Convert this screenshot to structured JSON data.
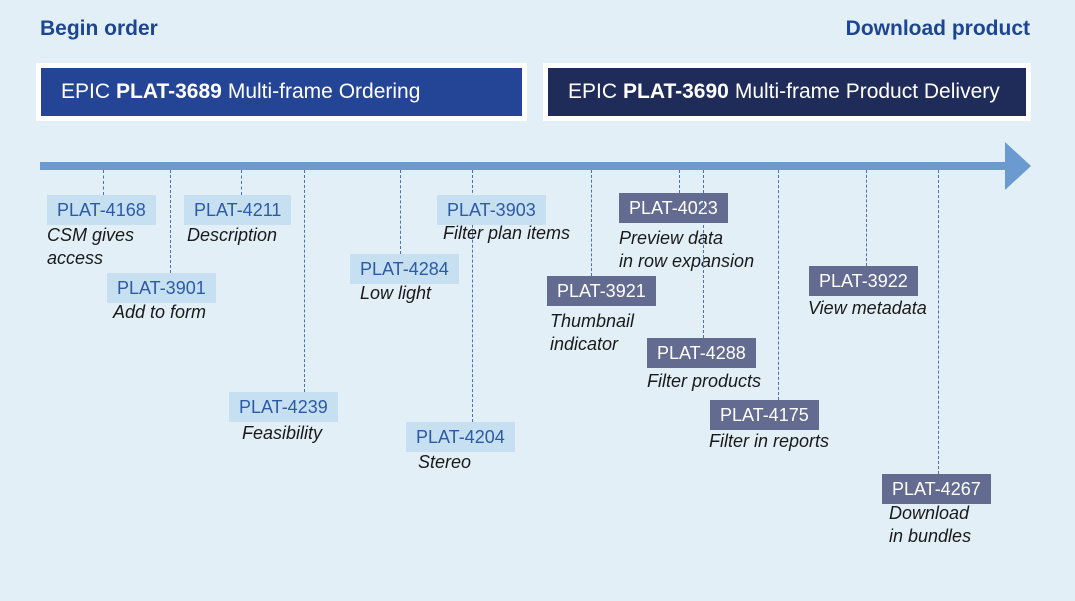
{
  "stages": {
    "begin": "Begin order",
    "end": "Download product"
  },
  "epics": [
    {
      "prefix": "EPIC",
      "id": "PLAT-3689",
      "title": "Multi-frame Ordering",
      "color": "#244496"
    },
    {
      "prefix": "EPIC",
      "id": "PLAT-3690",
      "title": "Multi-frame Product Delivery",
      "color": "#1f2b59"
    }
  ],
  "colors": {
    "light_tag": "#c6e0f2",
    "dark_tag": "#636b91",
    "timeline": "#6b9ad0",
    "background": "#e2eff7"
  },
  "tickets": [
    {
      "id": "PLAT-4168",
      "caption": [
        "CSM gives",
        "access"
      ],
      "epic": "PLAT-3689"
    },
    {
      "id": "PLAT-3901",
      "caption": [
        "Add to form"
      ],
      "epic": "PLAT-3689"
    },
    {
      "id": "PLAT-4211",
      "caption": [
        "Description"
      ],
      "epic": "PLAT-3689"
    },
    {
      "id": "PLAT-4239",
      "caption": [
        "Feasibility"
      ],
      "epic": "PLAT-3689"
    },
    {
      "id": "PLAT-4284",
      "caption": [
        "Low light"
      ],
      "epic": "PLAT-3689"
    },
    {
      "id": "PLAT-3903",
      "caption": [
        "Filter plan items"
      ],
      "epic": "PLAT-3689"
    },
    {
      "id": "PLAT-4204",
      "caption": [
        "Stereo"
      ],
      "epic": "PLAT-3689"
    },
    {
      "id": "PLAT-3921",
      "caption": [
        "Thumbnail",
        "indicator"
      ],
      "epic": "PLAT-3690"
    },
    {
      "id": "PLAT-4023",
      "caption": [
        "Preview data",
        "in row expansion"
      ],
      "epic": "PLAT-3690"
    },
    {
      "id": "PLAT-4288",
      "caption": [
        "Filter products"
      ],
      "epic": "PLAT-3690"
    },
    {
      "id": "PLAT-4175",
      "caption": [
        "Filter in reports"
      ],
      "epic": "PLAT-3690"
    },
    {
      "id": "PLAT-3922",
      "caption": [
        "View metadata"
      ],
      "epic": "PLAT-3690"
    },
    {
      "id": "PLAT-4267",
      "caption": [
        "Download",
        "in bundles"
      ],
      "epic": "PLAT-3690"
    }
  ]
}
